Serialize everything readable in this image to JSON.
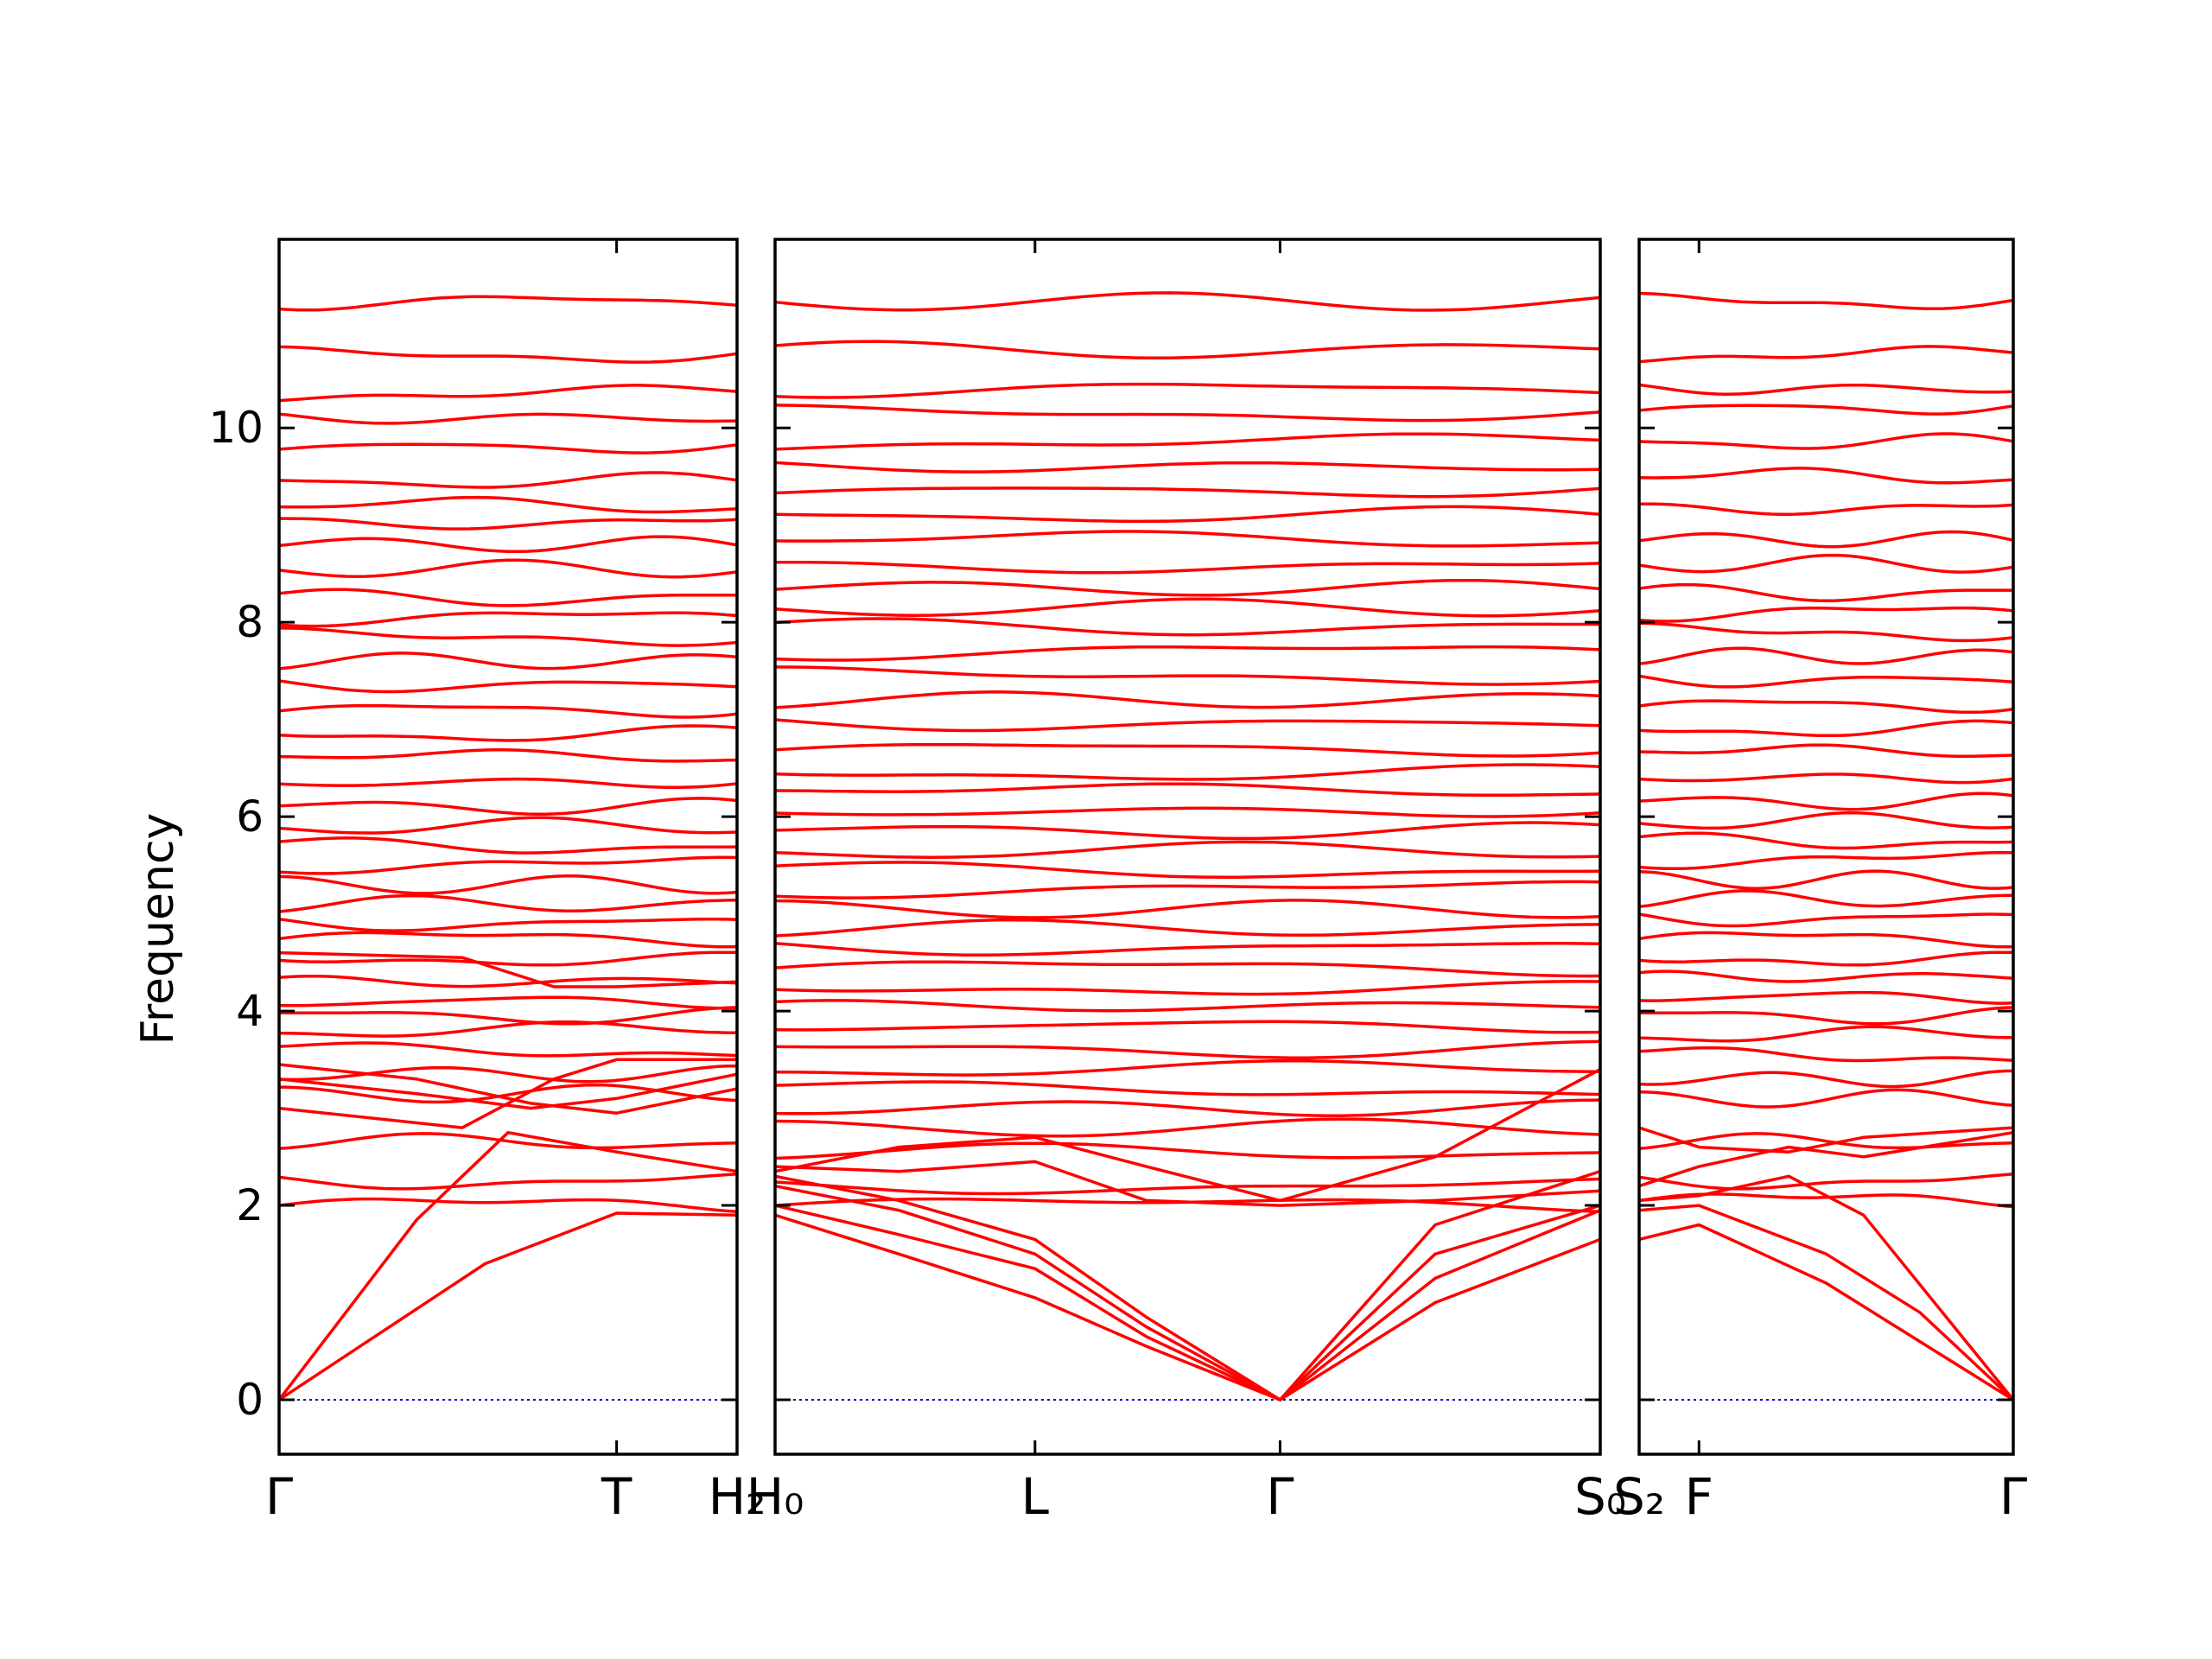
{
  "chart_data": {
    "type": "line",
    "title": "",
    "ylabel": "Frequency",
    "ylim": [
      -0.56,
      11.94
    ],
    "yticks": [
      0,
      2,
      4,
      6,
      8,
      10
    ],
    "ytick_labels": [
      "0",
      "2",
      "4",
      "6",
      "8",
      "10"
    ],
    "colors": {
      "band": "#ff0000",
      "zero_line": "#0000cc",
      "frame": "#000000"
    },
    "grid": false,
    "panels": [
      {
        "id": "panel-1",
        "x_labels": [
          {
            "x": 0.0,
            "label": "Γ"
          },
          {
            "x": 0.737,
            "label": "T"
          },
          {
            "x": 1.0,
            "label": "H₂"
          }
        ],
        "flat_bands": [
          2.0,
          2.25,
          2.65,
          3.15,
          3.35,
          3.6,
          3.8,
          3.95,
          4.1,
          4.3,
          4.55,
          4.75,
          4.9,
          5.1,
          5.3,
          5.5,
          5.7,
          5.9,
          6.1,
          6.35,
          6.6,
          6.85,
          7.1,
          7.35,
          7.6,
          7.85,
          8.05,
          8.25,
          8.55,
          8.8,
          9.05,
          9.2,
          9.45,
          9.8,
          10.1,
          10.35,
          10.75,
          11.3
        ],
        "dispersive_bands": [
          {
            "x": [
              0,
              0.45,
              0.737,
              1.0
            ],
            "y": [
              0,
              1.4,
              1.92,
              1.9
            ]
          },
          {
            "x": [
              0,
              0.3,
              0.5,
              0.737,
              1.0
            ],
            "y": [
              0,
              1.85,
              2.75,
              2.55,
              2.35
            ]
          },
          {
            "x": [
              0,
              0.3,
              0.55,
              0.737,
              1.0
            ],
            "y": [
              3.45,
              3.3,
              3.05,
              2.95,
              3.2
            ]
          },
          {
            "x": [
              0,
              0.3,
              0.55,
              0.737,
              1.0
            ],
            "y": [
              3.3,
              3.15,
              3.0,
              3.1,
              3.35
            ]
          },
          {
            "x": [
              0,
              0.4,
              0.6,
              0.737,
              1.0
            ],
            "y": [
              3.0,
              2.8,
              3.3,
              3.5,
              3.5
            ]
          },
          {
            "x": [
              0,
              0.4,
              0.6,
              0.737,
              1.0
            ],
            "y": [
              4.6,
              4.55,
              4.25,
              4.25,
              4.3
            ]
          }
        ]
      },
      {
        "id": "panel-2",
        "x_labels": [
          {
            "x": 0.0,
            "label": "H₀"
          },
          {
            "x": 0.315,
            "label": "L"
          },
          {
            "x": 0.612,
            "label": "Γ"
          },
          {
            "x": 1.0,
            "label": "S₀"
          }
        ],
        "flat_bands": [
          2.0,
          2.2,
          2.55,
          2.8,
          3.0,
          3.2,
          3.4,
          3.6,
          3.85,
          4.05,
          4.25,
          4.45,
          4.65,
          4.85,
          5.05,
          5.25,
          5.45,
          5.65,
          5.85,
          6.05,
          6.25,
          6.45,
          6.7,
          6.95,
          7.2,
          7.45,
          7.7,
          7.95,
          8.15,
          8.35,
          8.6,
          8.85,
          9.1,
          9.35,
          9.6,
          9.85,
          10.15,
          10.4,
          10.8,
          11.3
        ],
        "dispersive_bands": [
          {
            "x": [
              0,
              0.15,
              0.315,
              0.45,
              0.612,
              0.8,
              1.0
            ],
            "y": [
              1.9,
              1.5,
              1.05,
              0.55,
              0.0,
              1.0,
              1.65
            ]
          },
          {
            "x": [
              0,
              0.15,
              0.315,
              0.45,
              0.612,
              0.8,
              1.0
            ],
            "y": [
              2.0,
              1.7,
              1.35,
              0.65,
              0.0,
              1.25,
              1.95
            ]
          },
          {
            "x": [
              0,
              0.15,
              0.315,
              0.45,
              0.612,
              0.8,
              1.0
            ],
            "y": [
              2.2,
              1.95,
              1.5,
              0.75,
              0.0,
              1.5,
              2.0
            ]
          },
          {
            "x": [
              0,
              0.15,
              0.315,
              0.45,
              0.612,
              0.8,
              1.0
            ],
            "y": [
              2.3,
              2.05,
              1.65,
              0.85,
              0.0,
              1.8,
              2.35
            ]
          },
          {
            "x": [
              0,
              0.15,
              0.315,
              0.45,
              0.612,
              0.8,
              1.0
            ],
            "y": [
              2.4,
              2.35,
              2.45,
              2.05,
              2.0,
              2.05,
              2.15
            ]
          },
          {
            "x": [
              0,
              0.15,
              0.315,
              0.45,
              0.612,
              0.8,
              1.0
            ],
            "y": [
              2.35,
              2.6,
              2.7,
              2.4,
              2.05,
              2.5,
              3.4
            ]
          }
        ]
      },
      {
        "id": "panel-3",
        "x_labels": [
          {
            "x": 0.0,
            "label": "S₂"
          },
          {
            "x": 0.16,
            "label": "F"
          },
          {
            "x": 1.0,
            "label": "Γ"
          }
        ],
        "flat_bands": [
          2.05,
          2.25,
          2.65,
          3.1,
          3.3,
          3.55,
          3.75,
          3.95,
          4.15,
          4.35,
          4.55,
          4.75,
          4.95,
          5.15,
          5.35,
          5.55,
          5.75,
          5.95,
          6.15,
          6.4,
          6.65,
          6.9,
          7.15,
          7.4,
          7.65,
          7.9,
          8.1,
          8.3,
          8.6,
          8.85,
          9.2,
          9.5,
          9.85,
          10.2,
          10.4,
          10.75,
          11.3
        ],
        "dispersive_bands": [
          {
            "x": [
              0,
              0.16,
              0.5,
              1.0
            ],
            "y": [
              1.65,
              1.8,
              1.2,
              0.0
            ]
          },
          {
            "x": [
              0,
              0.16,
              0.5,
              0.75,
              1.0
            ],
            "y": [
              1.95,
              2.0,
              1.5,
              0.9,
              0.0
            ]
          },
          {
            "x": [
              0,
              0.16,
              0.4,
              0.6,
              1.0
            ],
            "y": [
              2.05,
              2.1,
              2.3,
              1.9,
              0.0
            ]
          },
          {
            "x": [
              0,
              0.16,
              0.4,
              0.6,
              1.0
            ],
            "y": [
              2.2,
              2.4,
              2.6,
              2.5,
              2.75
            ]
          },
          {
            "x": [
              0,
              0.16,
              0.4,
              0.6,
              1.0
            ],
            "y": [
              2.8,
              2.6,
              2.55,
              2.7,
              2.8
            ]
          }
        ]
      }
    ]
  }
}
